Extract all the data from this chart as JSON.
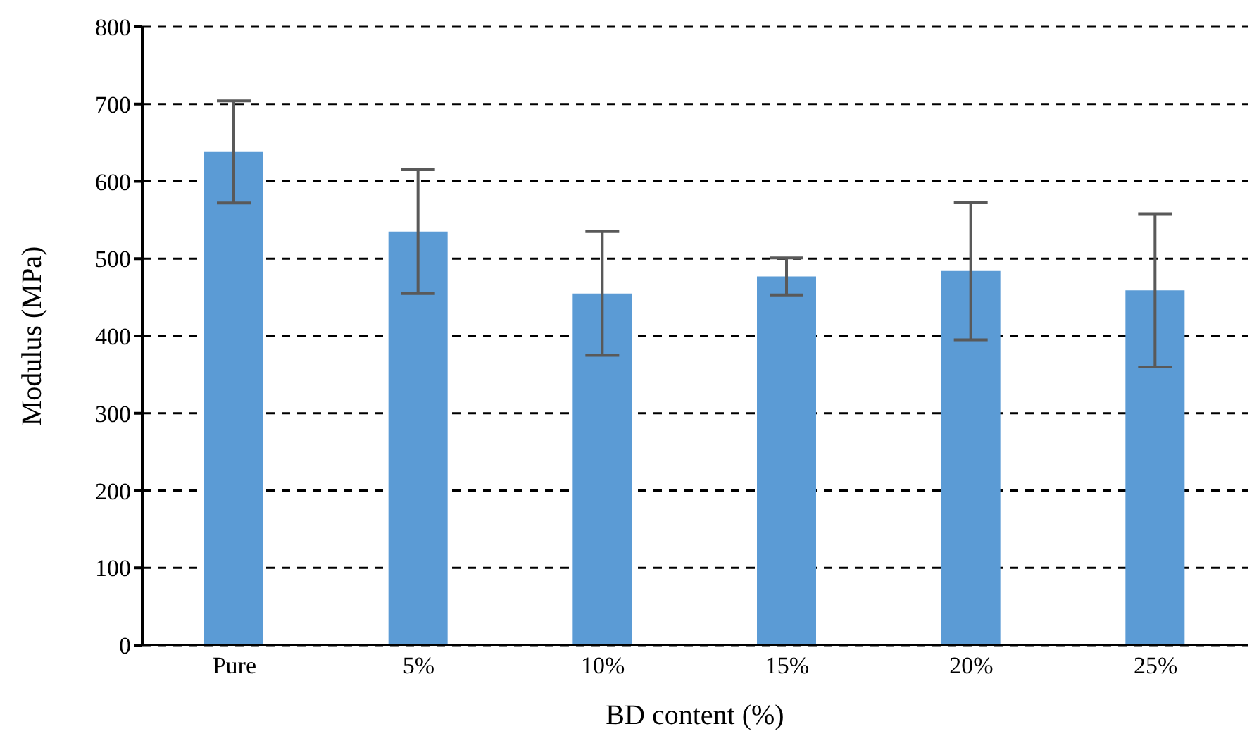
{
  "chart_data": {
    "type": "bar",
    "xlabel": "BD content (%)",
    "ylabel": "Modulus (MPa)",
    "categories": [
      "Pure",
      "5%",
      "10%",
      "15%",
      "20%",
      "25%"
    ],
    "values": [
      638,
      535,
      455,
      477,
      484,
      459
    ],
    "errors": [
      66,
      80,
      80,
      24,
      89,
      99
    ],
    "color": "#5b9bd5",
    "ylim": [
      0,
      800
    ],
    "yticks": [
      0,
      100,
      200,
      300,
      400,
      500,
      600,
      700,
      800
    ],
    "grid": "y",
    "legend": false
  }
}
